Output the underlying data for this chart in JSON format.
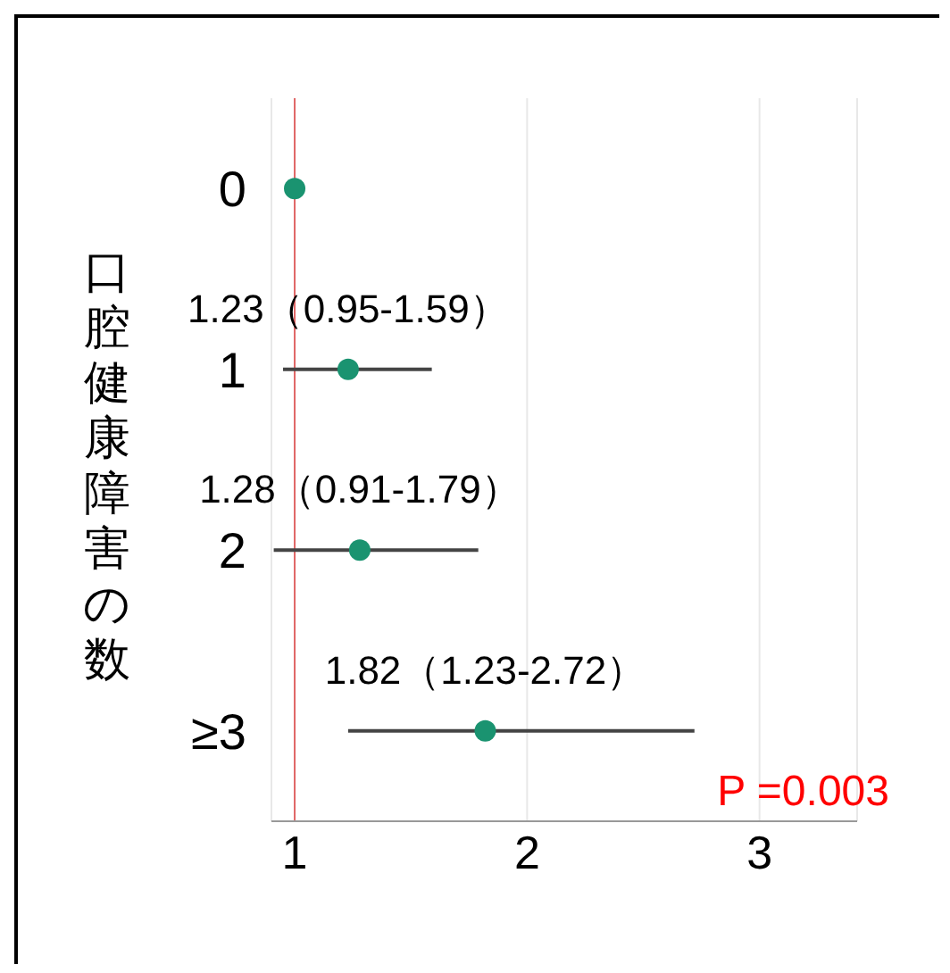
{
  "chart_data": {
    "type": "scatter",
    "orientation": "horizontal",
    "ylabel": "口腔健康障害の数",
    "categories": [
      "0",
      "1",
      "2",
      "≥3"
    ],
    "series": [
      {
        "color": "#1a9370",
        "values": [
          1,
          1.23,
          1.28,
          1.82
        ],
        "errors": [
          null,
          [
            0.95,
            1.59
          ],
          [
            0.91,
            1.79
          ],
          [
            1.23,
            2.72
          ]
        ],
        "value_labels": [
          null,
          "1.23（0.95-1.59）",
          "1.28（0.91-1.79）",
          "1.82（1.23-2.72）"
        ]
      }
    ],
    "xlim": [
      0.9,
      3.42
    ],
    "xticks": [
      1,
      2,
      3
    ],
    "ref_lines": [
      {
        "axis": "x",
        "value": 1,
        "color": "#e06666"
      }
    ],
    "annotations": [
      "P =0.003"
    ],
    "grid": "x",
    "marker": "circle",
    "legend": false
  }
}
